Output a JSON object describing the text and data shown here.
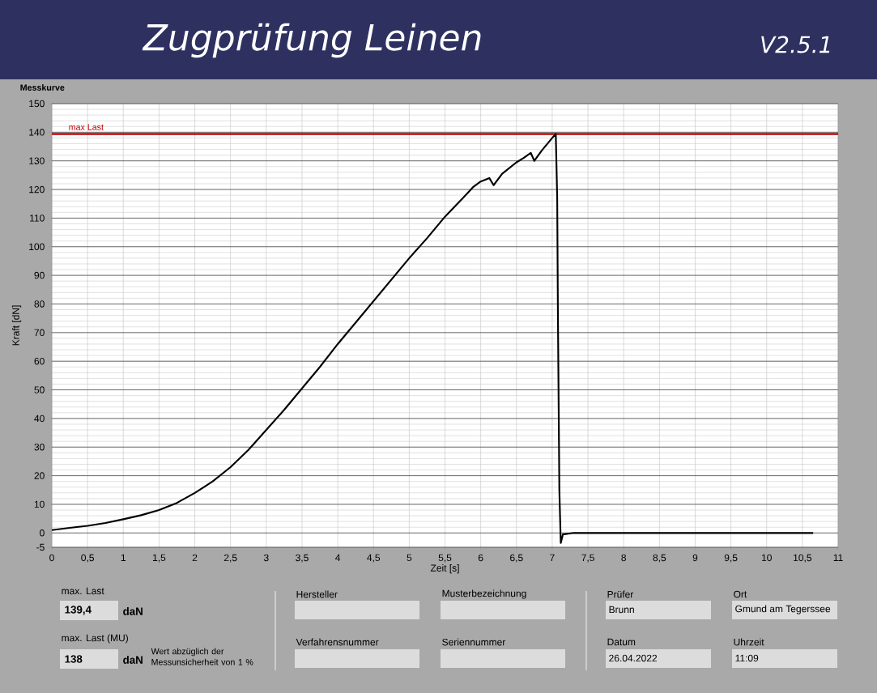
{
  "chart_data": {
    "type": "line",
    "title": "Zugprüfung Leinen",
    "subtitle": "Messkurve",
    "xlabel": "Zeit [s]",
    "ylabel": "Kraft [dN]",
    "x": [
      0,
      0.25,
      0.5,
      0.75,
      1,
      1.25,
      1.5,
      1.75,
      2,
      2.25,
      2.5,
      2.75,
      3,
      3.25,
      3.5,
      3.75,
      4,
      4.25,
      4.5,
      4.75,
      5,
      5.25,
      5.5,
      5.75,
      5.9,
      6,
      6.12,
      6.18,
      6.3,
      6.5,
      6.6,
      6.7,
      6.75,
      6.85,
      7,
      7.05,
      7.07,
      7.08,
      7.1,
      7.12,
      7.15,
      7.3,
      8,
      9,
      10,
      10.65
    ],
    "values": [
      1,
      1.8,
      2.5,
      3.5,
      4.8,
      6.2,
      8,
      10.5,
      14,
      18,
      23,
      29,
      36,
      43,
      50.5,
      58,
      66,
      73.5,
      81,
      88.5,
      96,
      103,
      110.5,
      117,
      121,
      122.8,
      124,
      121.5,
      125.5,
      129.5,
      131,
      132.8,
      130,
      133.5,
      138,
      139.4,
      117,
      76,
      15,
      -3.5,
      -0.5,
      0,
      0,
      0,
      0,
      0
    ],
    "color": "#000000",
    "xlim": [
      0,
      11
    ],
    "ylim": [
      -5,
      150
    ],
    "xticks": [
      0,
      {
        "value": 0.5,
        "label": "0,5"
      },
      1,
      {
        "value": 1.5,
        "label": "1,5"
      },
      2,
      {
        "value": 2.5,
        "label": "2,5"
      },
      3,
      {
        "value": 3.5,
        "label": "3,5"
      },
      4,
      {
        "value": 4.5,
        "label": "4,5"
      },
      5,
      {
        "value": 5.5,
        "label": "5,5"
      },
      6,
      {
        "value": 6.5,
        "label": "6,5"
      },
      7,
      {
        "value": 7.5,
        "label": "7,5"
      },
      8,
      {
        "value": 8.5,
        "label": "8,5"
      },
      9,
      {
        "value": 9.5,
        "label": "9,5"
      },
      10,
      {
        "value": 10.5,
        "label": "10,5"
      },
      11
    ],
    "yticks": [
      -5,
      0,
      10,
      20,
      30,
      40,
      50,
      60,
      70,
      80,
      90,
      100,
      110,
      120,
      130,
      140,
      150
    ],
    "grid": true,
    "ref_lines": [
      {
        "axis": "y",
        "value": 139.4,
        "label": "max Last",
        "color": "#c00000"
      }
    ],
    "annotations": [
      "V2.5.1",
      "max. Last",
      "139,4",
      "daN",
      "max. Last (MU)",
      "138",
      "daN",
      "Wert abzüglich der Messunsicherheit von 1 %",
      "Hersteller",
      "Musterbezeichnung",
      "Verfahrensnummer",
      "Seriennummer",
      "Prüfer",
      "Brunn",
      "Ort",
      "Gmund am Tegerssee",
      "Datum",
      "26.04.2022",
      "Uhrzeit",
      "11:09"
    ]
  }
}
